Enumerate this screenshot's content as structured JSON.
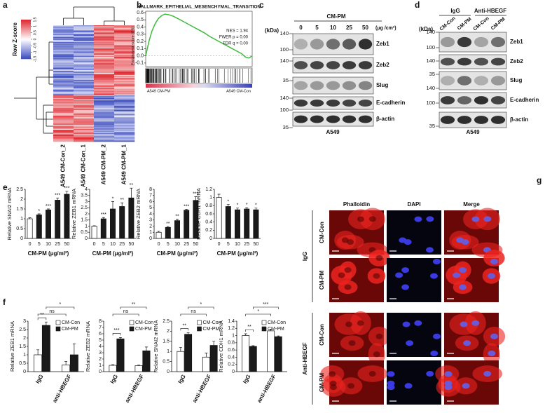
{
  "panel_labels": [
    "a",
    "b",
    "c",
    "d",
    "e",
    "f",
    "g"
  ],
  "heatmap": {
    "colorbar_label": "Row Z-score",
    "clim": [
      -1.5,
      1.5
    ],
    "colorbar_ticks": [
      -1.5,
      -1,
      -0.5,
      0,
      0.5,
      1,
      1.5
    ],
    "columns": [
      "A549 CM-Con_2",
      "A549 CM-Con_1",
      "A549 CM-PM_2",
      "A549 CM-PM_1"
    ]
  },
  "blot_c": {
    "title": "CM-PM",
    "unit_label": "(kDa)",
    "doses": [
      "0",
      "5",
      "10",
      "25",
      "50"
    ],
    "dose_unit": "(μg /cm²)",
    "markers": [
      "140",
      "100",
      "140",
      "35",
      "140",
      "100",
      "35"
    ],
    "proteins": [
      "Zeb1",
      "Zeb2",
      "Slug",
      "E-cadherin",
      "β-actin"
    ],
    "cell_line": "A549"
  },
  "blot_d": {
    "groups": [
      "IgG",
      "Anti-HBEGF"
    ],
    "lanes": [
      "CM-Con",
      "CM-PM",
      "CM-Con",
      "CM-PM"
    ],
    "unit_label": "(kDa)",
    "markers": [
      "140",
      "100",
      "140",
      "35",
      "140",
      "100",
      "35"
    ],
    "proteins": [
      "Zeb1",
      "Zeb2",
      "Slug",
      "E-cadherin",
      "β-actin"
    ],
    "cell_line": "A549"
  },
  "microscopy": {
    "channels": [
      "Phalloidin",
      "DAPI",
      "Merge"
    ],
    "conditions": [
      "CM-Con",
      "CM-PM",
      "CM-Con",
      "CM-PM"
    ],
    "groups": [
      "IgG",
      "Anti-HBEGF"
    ]
  },
  "chart_data": [
    {
      "type": "line",
      "title": "HALLMARK_EPITHELIAL_MESENCHYMAL_TRANSITION",
      "y_label": "Enrichment score (ES)",
      "x": [
        0,
        3,
        6,
        9,
        12,
        15,
        18,
        22,
        26,
        30,
        35,
        40,
        45,
        50,
        55,
        60,
        65,
        70,
        75,
        80,
        85,
        90,
        94,
        97,
        100
      ],
      "values": [
        0,
        0.2,
        0.35,
        0.45,
        0.52,
        0.56,
        0.58,
        0.57,
        0.55,
        0.52,
        0.48,
        0.44,
        0.4,
        0.36,
        0.32,
        0.27,
        0.23,
        0.19,
        0.15,
        0.11,
        0.07,
        0.03,
        -0.02,
        -0.03,
        0
      ],
      "color": "#3dbb3d",
      "xlim": [
        0,
        100
      ],
      "ylim": [
        -0.15,
        0.62
      ],
      "yticks": [
        0.6,
        0.5,
        0.4,
        0.3,
        0.2,
        0.1,
        {
          "value": 0,
          "label": "0.0"
        },
        -0.1
      ],
      "annotations": [
        "NES = 1.94",
        "FWER p = 0.00",
        "FDR q = 0.00"
      ],
      "group_labels": [
        "A549 CM-PM",
        "A549 CM-Con"
      ]
    },
    {
      "type": "bar",
      "y_label": "Relative SNAI2 mRNA",
      "x_label": "CM-PM (μg/ml²)",
      "categories": [
        "0",
        "5",
        "10",
        "25",
        "50"
      ],
      "values": [
        1.0,
        1.2,
        1.45,
        1.95,
        2.25
      ],
      "errors": [
        0.05,
        0.05,
        0.05,
        0.1,
        0.15
      ],
      "colors": [
        "#ffffff",
        "#1a1a1a",
        "#1a1a1a",
        "#1a1a1a",
        "#1a1a1a"
      ],
      "annotations": [
        null,
        "*",
        "***",
        "***",
        "***"
      ],
      "ylim": [
        0,
        2.5
      ],
      "yticks": [
        0,
        0.5,
        1,
        1.5,
        2,
        2.5
      ]
    },
    {
      "type": "bar",
      "y_label": "Relative ZEB1 mRNA",
      "x_label": "CM-PM (μg/ml²)",
      "categories": [
        "0",
        "5",
        "10",
        "25",
        "50"
      ],
      "values": [
        1.0,
        1.6,
        2.4,
        2.6,
        3.3
      ],
      "errors": [
        0.03,
        0.1,
        0.6,
        0.3,
        0.8
      ],
      "colors": [
        "#ffffff",
        "#1a1a1a",
        "#1a1a1a",
        "#1a1a1a",
        "#1a1a1a"
      ],
      "annotations": [
        null,
        "***",
        "*",
        "**",
        "**"
      ],
      "ylim": [
        0,
        4
      ],
      "yticks": [
        0,
        0.5,
        1,
        1.5,
        2,
        2.5,
        3,
        3.5,
        4
      ]
    },
    {
      "type": "bar",
      "y_label": "Relative ZEB2 mRNA",
      "x_label": "CM-PM (μg/ml²)",
      "categories": [
        "0",
        "5",
        "10",
        "25",
        "50"
      ],
      "values": [
        1.0,
        1.8,
        2.9,
        4.6,
        6.2
      ],
      "errors": [
        0.15,
        0.15,
        0.2,
        0.15,
        0.6
      ],
      "colors": [
        "#ffffff",
        "#1a1a1a",
        "#1a1a1a",
        "#1a1a1a",
        "#1a1a1a"
      ],
      "annotations": [
        null,
        "**",
        "**",
        "***",
        "***"
      ],
      "ylim": [
        0,
        8
      ],
      "yticks": [
        0,
        1,
        2,
        3,
        4,
        5,
        6,
        7,
        8
      ]
    },
    {
      "type": "bar",
      "y_label": "Relative CDH1 mRNA",
      "x_label": "CM-PM (μg/ml²)",
      "categories": [
        "0",
        "5",
        "10",
        "25",
        "50"
      ],
      "values": [
        1.0,
        0.78,
        0.7,
        0.72,
        0.7
      ],
      "errors": [
        0.08,
        0.05,
        0.04,
        0.03,
        0.04
      ],
      "colors": [
        "#ffffff",
        "#1a1a1a",
        "#1a1a1a",
        "#1a1a1a",
        "#1a1a1a"
      ],
      "annotations": [
        null,
        "*",
        "*",
        "*",
        "*"
      ],
      "ylim": [
        0,
        1.2
      ],
      "yticks": [
        0,
        0.2,
        0.4,
        0.6,
        0.8,
        1,
        1.2
      ]
    },
    {
      "type": "grouped_bar",
      "y_label": "Relative ZEB1 mRNA",
      "categories": [
        "IgG",
        "anti-HBEGF"
      ],
      "series": [
        {
          "name": "CM-Con",
          "color": "#ffffff",
          "values": [
            1.0,
            0.4
          ],
          "errors": [
            0.3,
            0.2
          ]
        },
        {
          "name": "CM-PM",
          "color": "#1a1a1a",
          "values": [
            2.75,
            1.0
          ],
          "errors": [
            0.2,
            0.65
          ]
        }
      ],
      "brackets": [
        "**",
        "ns",
        "*"
      ],
      "ylim": [
        0,
        3
      ],
      "yticks": [
        0,
        0.5,
        1,
        1.5,
        2,
        2.5,
        3
      ]
    },
    {
      "type": "grouped_bar",
      "y_label": "Relative ZEB2 mRNA",
      "categories": [
        "IgG",
        "anti-HBEGF"
      ],
      "series": [
        {
          "name": "CM-Con",
          "color": "#ffffff",
          "values": [
            1.0,
            0.95
          ],
          "errors": [
            0.1,
            0.1
          ]
        },
        {
          "name": "CM-PM",
          "color": "#1a1a1a",
          "values": [
            5.2,
            3.3
          ],
          "errors": [
            0.2,
            0.6
          ]
        }
      ],
      "brackets": [
        "***",
        "ns",
        "**"
      ],
      "ylim": [
        0,
        8
      ],
      "yticks": [
        0,
        1,
        2,
        3,
        4,
        5,
        6,
        7,
        8
      ]
    },
    {
      "type": "grouped_bar",
      "y_label": "Relative SNAI2 mRNA",
      "categories": [
        "IgG",
        "anti-HBEGF"
      ],
      "series": [
        {
          "name": "CM-Con",
          "color": "#ffffff",
          "values": [
            1.0,
            0.72
          ],
          "errors": [
            0.2,
            0.2
          ]
        },
        {
          "name": "CM-PM",
          "color": "#1a1a1a",
          "values": [
            1.85,
            1.3
          ],
          "errors": [
            0.08,
            0.2
          ]
        }
      ],
      "brackets": [
        "**",
        "ns",
        "*"
      ],
      "ylim": [
        0,
        2.5
      ],
      "yticks": [
        0,
        0.5,
        1,
        1.5,
        2,
        2.5
      ]
    },
    {
      "type": "grouped_bar",
      "y_label": "Relative CDH1 mRNA",
      "categories": [
        "IgG",
        "anti-HBEGF"
      ],
      "series": [
        {
          "name": "CM-Con",
          "color": "#ffffff",
          "values": [
            1.0,
            1.13
          ],
          "errors": [
            0.05,
            0.05
          ]
        },
        {
          "name": "CM-PM",
          "color": "#1a1a1a",
          "values": [
            0.7,
            0.97
          ],
          "errors": [
            0.02,
            0.02
          ]
        }
      ],
      "brackets": [
        "**",
        "*",
        "***"
      ],
      "ylim": [
        0,
        1.4
      ],
      "yticks": [
        0,
        0.2,
        0.4,
        0.6,
        0.8,
        1,
        1.2,
        1.4
      ]
    }
  ]
}
